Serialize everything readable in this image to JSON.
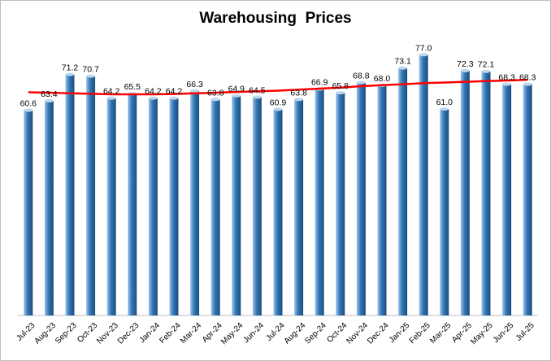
{
  "chart_data": {
    "type": "bar",
    "title": "Warehousing  Prices",
    "categories": [
      "Jul-23",
      "Aug-23",
      "Sep-23",
      "Oct-23",
      "Nov-23",
      "Dec-23",
      "Jan-24",
      "Feb-24",
      "Mar-24",
      "Apr-24",
      "May-24",
      "Jun-24",
      "Jul-24",
      "Aug-24",
      "Sep-24",
      "Oct-24",
      "Nov-24",
      "Dec-24",
      "Jan-25",
      "Feb-25",
      "Mar-25",
      "Apr-25",
      "May-25",
      "Jun-25",
      "Jul-25"
    ],
    "values": [
      60.6,
      63.4,
      71.2,
      70.7,
      64.2,
      65.5,
      64.2,
      64.2,
      66.3,
      63.8,
      64.9,
      64.5,
      60.9,
      63.8,
      66.9,
      65.8,
      68.8,
      68.0,
      73.1,
      77.0,
      61.0,
      72.3,
      72.1,
      68.3,
      68.3
    ],
    "value_labels": [
      "60.6",
      "63.4",
      "71.2",
      "70.7",
      "64.2",
      "65.5",
      "64.2",
      "64.2",
      "66.3",
      "63.8",
      "64.9",
      "64.5",
      "60.9",
      "63.8",
      "66.9",
      "65.8",
      "68.8",
      "68.0",
      "73.1",
      "77.0",
      "61.0",
      "72.3",
      "72.1",
      "68.3",
      "68.3"
    ],
    "trendline": [
      65.9,
      65.8,
      65.6,
      65.5,
      65.3,
      65.3,
      65.3,
      65.4,
      65.6,
      65.8,
      66.0,
      66.2,
      66.4,
      66.7,
      67.0,
      67.3,
      67.7,
      68.0,
      68.3,
      68.6,
      68.8,
      69.0,
      69.2,
      69.4,
      69.6
    ],
    "ylim": [
      0,
      85
    ],
    "grid": false,
    "legend": "none",
    "colors": {
      "bar_light": "#9dc3e6",
      "bar_mid": "#2e75b6",
      "bar_dark": "#1f4e79",
      "bar_top": "#bdd7ee",
      "trendline": "#ff0000",
      "axis": "#bfbfbf"
    }
  }
}
